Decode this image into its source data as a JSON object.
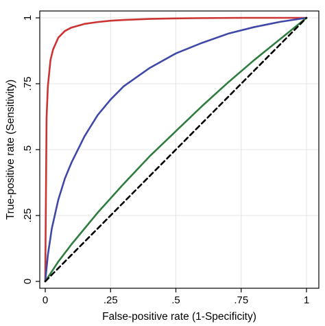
{
  "chart_data": {
    "type": "line",
    "title": "",
    "xlabel": "False-positive rate (1-Specificity)",
    "ylabel": "True-positive rate (Sensitivity)",
    "xlim": [
      0,
      1
    ],
    "ylim": [
      0,
      1
    ],
    "x_ticks": [
      0,
      0.25,
      0.5,
      0.75,
      1
    ],
    "x_tick_labels": [
      "0",
      ".25",
      ".5",
      ".75",
      "1"
    ],
    "y_ticks": [
      0,
      0.25,
      0.5,
      0.75,
      1
    ],
    "y_tick_labels": [
      "0",
      ".25",
      ".5",
      ".75",
      "1"
    ],
    "grid": true,
    "legend": "none",
    "series": [
      {
        "color": "#cc3333",
        "line_style": "solid",
        "x": [
          0,
          0.005,
          0.01,
          0.02,
          0.03,
          0.05,
          0.075,
          0.1,
          0.15,
          0.2,
          0.25,
          0.3,
          0.4,
          0.5,
          0.6,
          0.75,
          0.9,
          1
        ],
        "y": [
          0,
          0.62,
          0.74,
          0.84,
          0.88,
          0.925,
          0.95,
          0.963,
          0.977,
          0.984,
          0.989,
          0.992,
          0.996,
          0.998,
          0.999,
          1,
          1,
          1
        ]
      },
      {
        "color": "#3f48a8",
        "line_style": "solid",
        "x": [
          0,
          0.01,
          0.025,
          0.05,
          0.075,
          0.1,
          0.15,
          0.2,
          0.25,
          0.3,
          0.4,
          0.5,
          0.6,
          0.7,
          0.8,
          0.9,
          1
        ],
        "y": [
          0,
          0.1,
          0.2,
          0.31,
          0.39,
          0.45,
          0.55,
          0.63,
          0.69,
          0.74,
          0.81,
          0.865,
          0.905,
          0.94,
          0.965,
          0.985,
          1
        ]
      },
      {
        "color": "#2e7d3e",
        "line_style": "solid",
        "x": [
          0,
          0.05,
          0.1,
          0.2,
          0.3,
          0.4,
          0.5,
          0.6,
          0.7,
          0.8,
          0.9,
          1
        ],
        "y": [
          0,
          0.075,
          0.14,
          0.26,
          0.37,
          0.475,
          0.57,
          0.665,
          0.755,
          0.84,
          0.92,
          1
        ]
      },
      {
        "color": "#000000",
        "line_style": "dashed",
        "x": [
          0,
          1
        ],
        "y": [
          0,
          1
        ]
      }
    ]
  }
}
